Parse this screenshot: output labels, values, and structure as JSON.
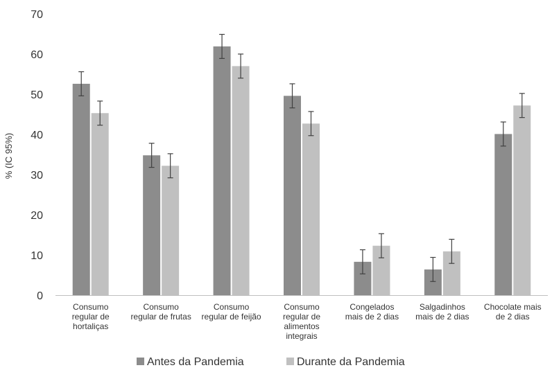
{
  "chart_data": {
    "type": "bar",
    "ylabel": "% (IC 95%)",
    "ylim": [
      0,
      70
    ],
    "yticks": [
      0,
      10,
      20,
      30,
      40,
      50,
      60,
      70
    ],
    "grid": false,
    "legend_position": "bottom",
    "categories": [
      [
        "Consumo",
        "regular de",
        "hortaliças"
      ],
      [
        "Consumo",
        "regular de frutas"
      ],
      [
        "Consumo",
        "regular de feijão"
      ],
      [
        "Consumo",
        "regular de",
        "alimentos",
        "integrais"
      ],
      [
        "Congelados",
        "mais de 2 dias"
      ],
      [
        "Salgadinhos",
        "mais de 2 dias"
      ],
      [
        "Chocolate mais",
        "de 2 dias"
      ]
    ],
    "series": [
      {
        "name": "Antes da Pandemia",
        "color": "#8c8c8c",
        "values": [
          52.6,
          34.8,
          61.9,
          49.6,
          8.3,
          6.4,
          40.1
        ],
        "ci_low": [
          49.6,
          31.8,
          58.9,
          46.6,
          5.3,
          3.4,
          37.1
        ],
        "ci_high": [
          55.6,
          37.8,
          64.9,
          52.6,
          11.3,
          9.4,
          43.1
        ]
      },
      {
        "name": "Durante da Pandemia",
        "color": "#c0c0c0",
        "values": [
          45.3,
          32.2,
          57.0,
          42.7,
          12.3,
          10.9,
          47.2
        ],
        "ci_low": [
          42.3,
          29.2,
          54.0,
          39.7,
          9.3,
          7.9,
          44.2
        ],
        "ci_high": [
          48.3,
          35.2,
          60.0,
          45.7,
          15.3,
          13.9,
          50.2
        ]
      }
    ]
  }
}
